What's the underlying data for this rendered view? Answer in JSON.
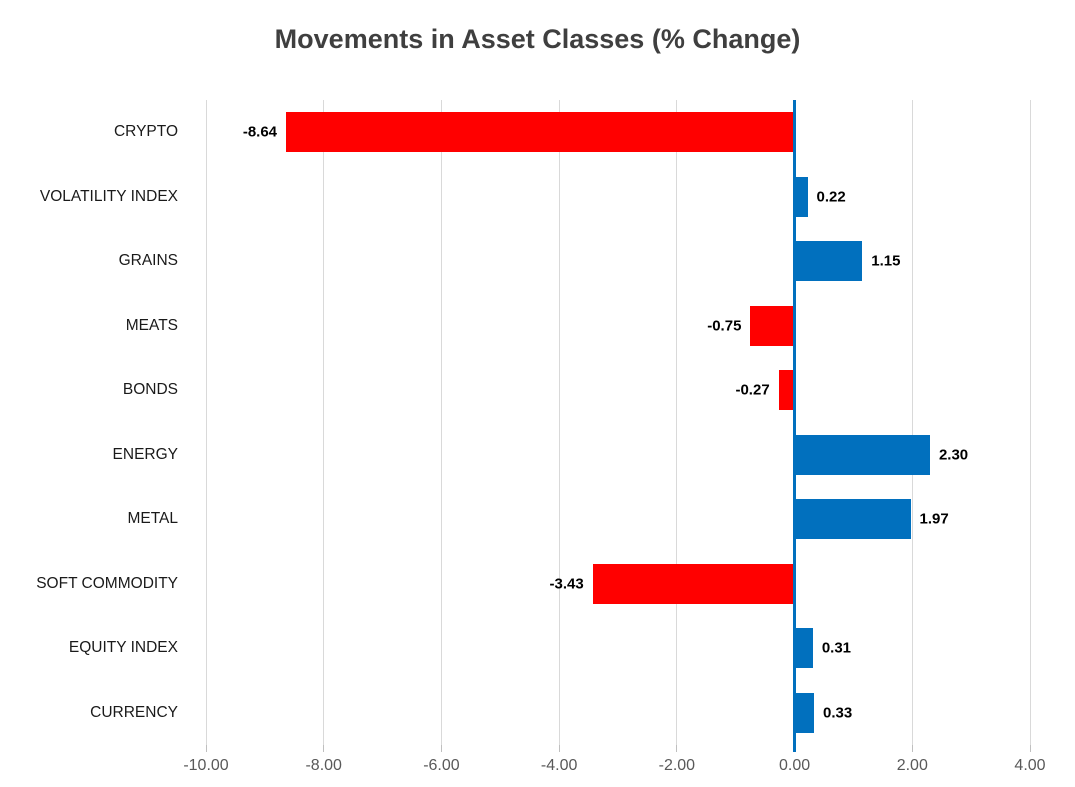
{
  "title": "Movements in Asset Classes (% Change)",
  "chart_data": {
    "type": "bar",
    "orientation": "horizontal",
    "title": "Movements in Asset Classes (% Change)",
    "categories": [
      "CRYPTO",
      "VOLATILITY INDEX",
      "GRAINS",
      "MEATS",
      "BONDS",
      "ENERGY",
      "METAL",
      "SOFT COMMODITY",
      "EQUITY INDEX",
      "CURRENCY"
    ],
    "values": [
      -8.64,
      0.22,
      1.15,
      -0.75,
      -0.27,
      2.3,
      1.97,
      -3.43,
      0.31,
      0.33
    ],
    "value_labels": [
      "-8.64",
      "0.22",
      "1.15",
      "-0.75",
      "-0.27",
      "2.30",
      "1.97",
      "-3.43",
      "0.31",
      "0.33"
    ],
    "xlabel": "",
    "ylabel": "",
    "xlim": [
      -10,
      4
    ],
    "x_ticks": [
      -10,
      -8,
      -6,
      -4,
      -2,
      0,
      2,
      4
    ],
    "x_tick_labels": [
      "-10.00",
      "-8.00",
      "-6.00",
      "-4.00",
      "-2.00",
      "0.00",
      "2.00",
      "4.00"
    ],
    "grid": true,
    "legend": "none",
    "colors": {
      "positive_bar": "#0170be",
      "negative_bar": "#ff0000",
      "zero_axis_line": "#0170be",
      "gridline": "#d9d9d9",
      "tick_mark": "#bfbfbf",
      "title_text": "#3f3f3f",
      "category_text": "#1a1a1a",
      "tick_text": "#595959",
      "value_text": "#000000"
    }
  }
}
